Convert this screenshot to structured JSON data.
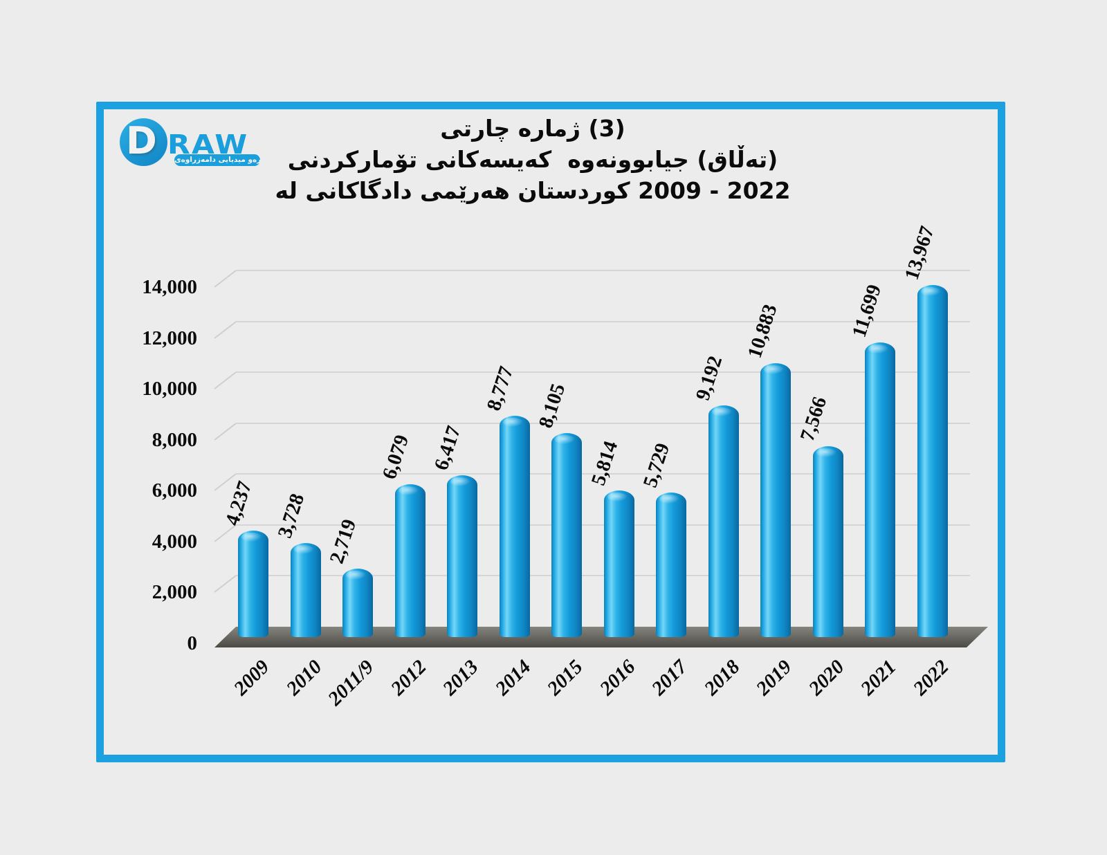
{
  "page": {
    "background_color": "#ECECEC",
    "frame_color": "#1BA1DF"
  },
  "logo": {
    "d_letter": "D",
    "raw_text": "RAW",
    "banner_text": "دامەزراوەی‎ میدیایی‎ درەو"
  },
  "title": {
    "line1": "چارتی‎ ژماره‎ (3)",
    "line2": "تۆمارکردنی‎ کەیسەکانی‎  جیابوونەوە‎ (تەڵاق)",
    "line3": "له‎ دادگاکانی‎ هەرێمی‎ کوردستان‎ 2009 - 2022"
  },
  "chart_data": {
    "type": "bar",
    "style": "3d-rounded-cylinder-bars",
    "title_lines": [
      "چارتی‎ ژماره‎ (3)",
      "تۆمارکردنی‎ کەیسەکانی‎  جیابوونەوە‎ (تەڵاق)",
      "له‎ دادگاکانی‎ هەرێمی‎ کوردستان‎ 2009 - 2022"
    ],
    "categories": [
      "2009",
      "2010",
      "2011/9",
      "2012",
      "2013",
      "2014",
      "2015",
      "2016",
      "2017",
      "2018",
      "2019",
      "2020",
      "2021",
      "2022"
    ],
    "values": [
      4237,
      3728,
      2719,
      6079,
      6417,
      8777,
      8105,
      5814,
      5729,
      9192,
      10883,
      7566,
      11699,
      13967
    ],
    "value_labels": [
      "4,237",
      "3,728",
      "2,719",
      "6,079",
      "6,417",
      "8,777",
      "8,105",
      "5,814",
      "5,729",
      "9,192",
      "10,883",
      "7,566",
      "11,699",
      "13,967"
    ],
    "y_ticks": [
      0,
      2000,
      4000,
      6000,
      8000,
      10000,
      12000,
      14000
    ],
    "y_tick_labels": [
      "0",
      "2,000",
      "4,000",
      "6,000",
      "8,000",
      "10,000",
      "12,000",
      "14,000"
    ],
    "ylim": [
      0,
      14000
    ],
    "grid": true,
    "legend_position": null,
    "bar_color": "#189CD8",
    "floor_color": "#5E5D56",
    "xlabel": "",
    "ylabel": ""
  }
}
